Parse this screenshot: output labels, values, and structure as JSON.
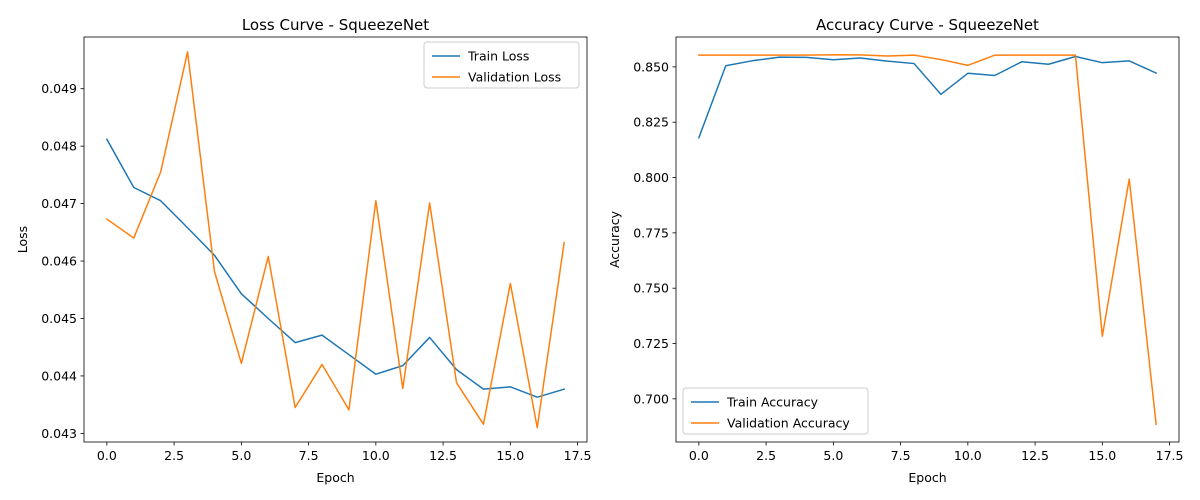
{
  "colors": {
    "train": "#1f77b4",
    "validation": "#ff7f0e"
  },
  "chart_data": [
    {
      "type": "line",
      "title": "Loss Curve - SqueezeNet",
      "xlabel": "Epoch",
      "ylabel": "Loss",
      "xlim": [
        -0.85,
        17.85
      ],
      "ylim": [
        0.04285,
        0.0499
      ],
      "xticks": [
        0,
        2.5,
        5,
        7.5,
        10,
        12.5,
        15,
        17.5
      ],
      "xtick_labels": [
        "0.0",
        "2.5",
        "5.0",
        "7.5",
        "10.0",
        "12.5",
        "15.0",
        "17.5"
      ],
      "yticks": [
        0.043,
        0.044,
        0.045,
        0.046,
        0.047,
        0.048,
        0.049
      ],
      "ytick_labels": [
        "0.043",
        "0.044",
        "0.045",
        "0.046",
        "0.047",
        "0.048",
        "0.049"
      ],
      "legend": "top-right",
      "grid": false,
      "x": [
        0,
        1,
        2,
        3,
        4,
        5,
        6,
        7,
        8,
        9,
        10,
        11,
        12,
        13,
        14,
        15,
        16,
        17
      ],
      "series": [
        {
          "name": "Train Loss",
          "color_key": "train",
          "values": [
            0.04812,
            0.04728,
            0.04705,
            0.04658,
            0.0461,
            0.04543,
            0.045,
            0.04458,
            0.04471,
            0.04437,
            0.04403,
            0.04418,
            0.04467,
            0.04411,
            0.04377,
            0.04381,
            0.04363,
            0.04377
          ]
        },
        {
          "name": "Validation Loss",
          "color_key": "validation",
          "values": [
            0.04673,
            0.0464,
            0.04755,
            0.04964,
            0.04582,
            0.04422,
            0.04608,
            0.04345,
            0.0442,
            0.04341,
            0.04705,
            0.04378,
            0.04701,
            0.04388,
            0.04316,
            0.04561,
            0.0431,
            0.04632
          ]
        }
      ]
    },
    {
      "type": "line",
      "title": "Accuracy Curve - SqueezeNet",
      "xlabel": "Epoch",
      "ylabel": "Accuracy",
      "xlim": [
        -0.85,
        17.85
      ],
      "ylim": [
        0.6805,
        0.8635
      ],
      "xticks": [
        0,
        2.5,
        5,
        7.5,
        10,
        12.5,
        15,
        17.5
      ],
      "xtick_labels": [
        "0.0",
        "2.5",
        "5.0",
        "7.5",
        "10.0",
        "12.5",
        "15.0",
        "17.5"
      ],
      "yticks": [
        0.7,
        0.725,
        0.75,
        0.775,
        0.8,
        0.825,
        0.85
      ],
      "ytick_labels": [
        "0.700",
        "0.725",
        "0.750",
        "0.775",
        "0.800",
        "0.825",
        "0.850"
      ],
      "legend": "bottom-left",
      "grid": false,
      "x": [
        0,
        1,
        2,
        3,
        4,
        5,
        6,
        7,
        8,
        9,
        10,
        11,
        12,
        13,
        14,
        15,
        16,
        17
      ],
      "series": [
        {
          "name": "Train Accuracy",
          "color_key": "train",
          "values": [
            0.818,
            0.8505,
            0.8528,
            0.8544,
            0.8543,
            0.8532,
            0.854,
            0.8526,
            0.8515,
            0.8376,
            0.8471,
            0.8461,
            0.8523,
            0.8512,
            0.8547,
            0.8519,
            0.8527,
            0.8472
          ]
        },
        {
          "name": "Validation Accuracy",
          "color_key": "validation",
          "values": [
            0.8553,
            0.8553,
            0.8553,
            0.8553,
            0.8553,
            0.8555,
            0.8554,
            0.8549,
            0.8553,
            0.8533,
            0.8507,
            0.8553,
            0.8553,
            0.8553,
            0.8553,
            0.7283,
            0.7993,
            0.6885
          ]
        }
      ]
    }
  ]
}
